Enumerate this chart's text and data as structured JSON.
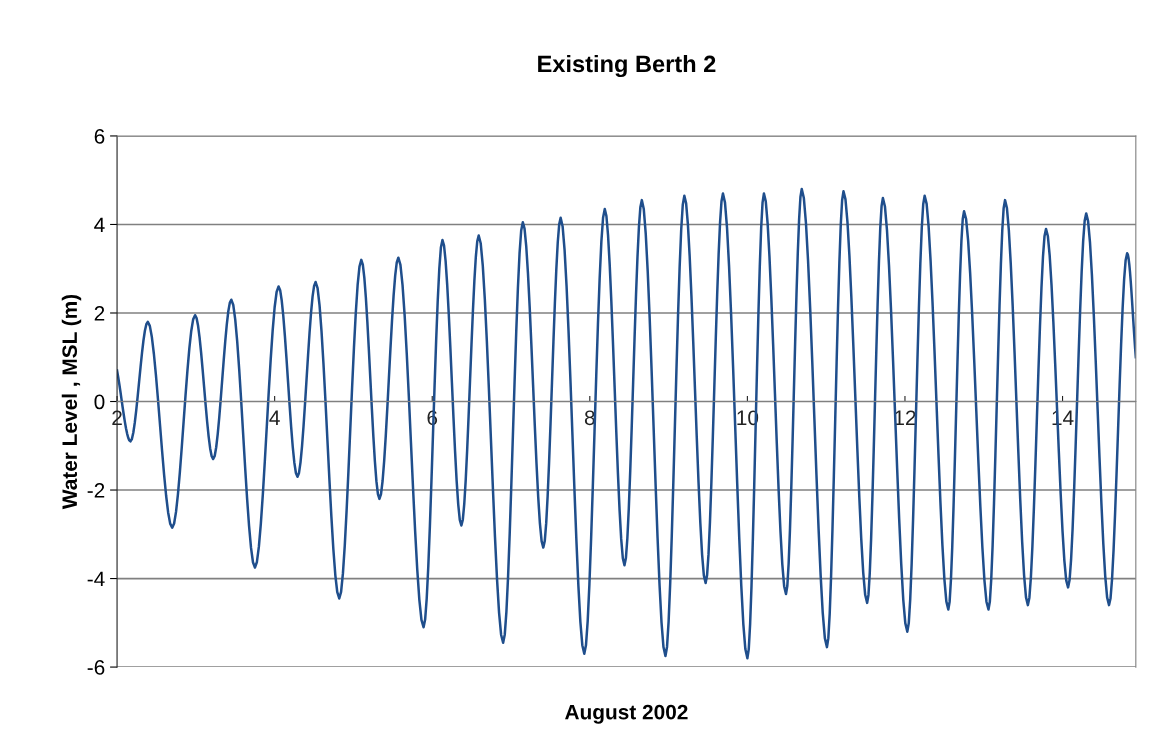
{
  "chart_data": {
    "type": "line",
    "title": "Existing Berth 2",
    "xlabel": "August 2002",
    "ylabel": "Water Level , MSL (m)",
    "xlim": [
      2,
      14.93
    ],
    "xticks": [
      2,
      4,
      6,
      8,
      10,
      12,
      14
    ],
    "ylim": [
      -6,
      6
    ],
    "yticks": [
      -6,
      -4,
      -2,
      0,
      2,
      4,
      6
    ],
    "grid": "y",
    "legend": false,
    "marker": "none",
    "line_style": "solid",
    "series": [
      {
        "color": "#1f4e8c",
        "x": [
          2.0,
          2.17,
          2.39,
          2.7,
          2.99,
          3.22,
          3.45,
          3.75,
          4.05,
          4.29,
          4.52,
          4.82,
          5.1,
          5.33,
          5.57,
          5.89,
          6.13,
          6.37,
          6.59,
          6.9,
          7.15,
          7.41,
          7.63,
          7.93,
          8.19,
          8.44,
          8.66,
          8.96,
          9.2,
          9.47,
          9.69,
          10.0,
          10.21,
          10.49,
          10.69,
          11.01,
          11.22,
          11.52,
          11.72,
          12.03,
          12.25,
          12.55,
          12.75,
          13.06,
          13.27,
          13.56,
          13.79,
          14.07,
          14.3,
          14.59,
          14.82,
          14.93
        ],
        "values": [
          0.7,
          -0.9,
          1.8,
          -2.85,
          1.95,
          -1.3,
          2.3,
          -3.75,
          2.6,
          -1.7,
          2.7,
          -4.45,
          3.2,
          -2.2,
          3.25,
          -5.1,
          3.65,
          -2.8,
          3.75,
          -5.45,
          4.05,
          -3.3,
          4.15,
          -5.7,
          4.35,
          -3.7,
          4.55,
          -5.75,
          4.65,
          -4.1,
          4.7,
          -5.8,
          4.7,
          -4.35,
          4.8,
          -5.55,
          4.75,
          -4.55,
          4.6,
          -5.2,
          4.65,
          -4.7,
          4.3,
          -4.7,
          4.55,
          -4.6,
          3.9,
          -4.2,
          4.25,
          -4.6,
          3.35,
          1.0
        ]
      }
    ]
  }
}
